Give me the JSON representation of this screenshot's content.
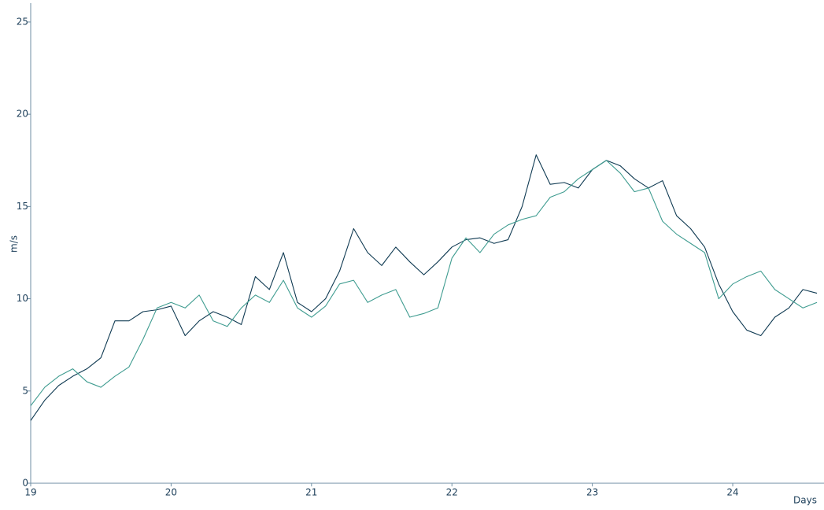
{
  "chart_data": {
    "type": "line",
    "x_label": "Days",
    "y_label": "m/s",
    "x": [
      19.0,
      19.1,
      19.2,
      19.3,
      19.4,
      19.5,
      19.6,
      19.7,
      19.8,
      19.9,
      20.0,
      20.1,
      20.2,
      20.3,
      20.4,
      20.5,
      20.6,
      20.7,
      20.8,
      20.9,
      21.0,
      21.1,
      21.2,
      21.3,
      21.4,
      21.5,
      21.6,
      21.7,
      21.8,
      21.9,
      22.0,
      22.1,
      22.2,
      22.3,
      22.4,
      22.5,
      22.6,
      22.7,
      22.8,
      22.9,
      23.0,
      23.1,
      23.2,
      23.3,
      23.4,
      23.5,
      23.6,
      23.7,
      23.8,
      23.9,
      24.0,
      24.1,
      24.2,
      24.3,
      24.4,
      24.5,
      24.6
    ],
    "series": [
      {
        "color": "#0f3a52",
        "values": [
          3.4,
          4.5,
          5.3,
          5.8,
          6.2,
          6.8,
          8.8,
          8.8,
          9.3,
          9.4,
          9.6,
          8.0,
          8.8,
          9.3,
          9.0,
          8.6,
          11.2,
          10.5,
          12.5,
          9.8,
          9.3,
          10.0,
          11.5,
          13.8,
          12.5,
          11.8,
          12.8,
          12.0,
          11.3,
          12.0,
          12.8,
          13.2,
          13.3,
          13.0,
          13.2,
          15.0,
          17.8,
          16.2,
          16.3,
          16.0,
          17.0,
          17.5,
          17.2,
          16.5,
          16.0,
          16.4,
          14.5,
          13.8,
          12.8,
          10.8,
          9.3,
          8.3,
          8.0,
          9.0,
          9.5,
          10.5,
          10.3
        ]
      },
      {
        "color": "#3f9c90",
        "values": [
          4.2,
          5.2,
          5.8,
          6.2,
          5.5,
          5.2,
          5.8,
          6.3,
          7.8,
          9.5,
          9.8,
          9.5,
          10.2,
          8.8,
          8.5,
          9.5,
          10.2,
          9.8,
          11.0,
          9.5,
          9.0,
          9.6,
          10.8,
          11.0,
          9.8,
          10.2,
          10.5,
          9.0,
          9.2,
          9.5,
          12.2,
          13.3,
          12.5,
          13.5,
          14.0,
          14.3,
          14.5,
          15.5,
          15.8,
          16.5,
          17.0,
          17.5,
          16.8,
          15.8,
          16.0,
          14.2,
          13.5,
          13.0,
          12.5,
          10.0,
          10.8,
          11.2,
          11.5,
          10.5,
          10.0,
          9.5,
          9.8
        ]
      }
    ],
    "xlim": [
      19,
      24.65
    ],
    "xticks": [
      19,
      20,
      21,
      22,
      23,
      24
    ],
    "ylim": [
      0,
      26
    ],
    "yticks": [
      0,
      5,
      10,
      15,
      20,
      25
    ]
  }
}
